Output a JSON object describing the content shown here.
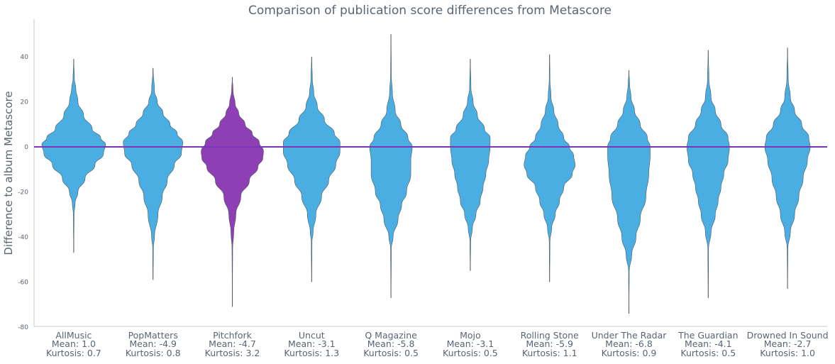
{
  "chart_data": {
    "type": "violin",
    "title": "Comparison of publication score differences from Metascore",
    "xlabel": "",
    "ylabel": "Difference to album Metascore",
    "ylim": [
      -80,
      55
    ],
    "yticks": [
      40,
      20,
      0,
      -20,
      -40,
      -60,
      -80
    ],
    "reference_line": 0,
    "grid": false,
    "colors": {
      "default": "#4aaee3",
      "highlight": "#8e3fb4",
      "reference": "#7b35b8",
      "axis": "#c8c8c8"
    },
    "categories": [
      {
        "name": "AllMusic",
        "mean": "Mean: 1.0",
        "kurtosis": "Kurtosis: 0.7",
        "highlight": false,
        "min": -47,
        "max": 39,
        "profile": [
          [
            -47,
            0
          ],
          [
            -30,
            0.5
          ],
          [
            -25,
            2
          ],
          [
            -20,
            6
          ],
          [
            -14,
            16
          ],
          [
            -8,
            30
          ],
          [
            -3,
            42
          ],
          [
            1,
            45
          ],
          [
            4,
            38
          ],
          [
            8,
            26
          ],
          [
            14,
            14
          ],
          [
            20,
            6
          ],
          [
            26,
            3
          ],
          [
            30,
            1
          ],
          [
            39,
            0
          ]
        ]
      },
      {
        "name": "PopMatters",
        "mean": "Mean: -4.9",
        "kurtosis": "Kurtosis: 0.8",
        "highlight": false,
        "min": -59,
        "max": 35,
        "profile": [
          [
            -59,
            0
          ],
          [
            -45,
            0.5
          ],
          [
            -40,
            2
          ],
          [
            -30,
            7
          ],
          [
            -22,
            13
          ],
          [
            -15,
            20
          ],
          [
            -8,
            30
          ],
          [
            -3,
            40
          ],
          [
            2,
            42
          ],
          [
            6,
            34
          ],
          [
            10,
            24
          ],
          [
            15,
            14
          ],
          [
            20,
            6
          ],
          [
            25,
            2
          ],
          [
            35,
            0
          ]
        ]
      },
      {
        "name": "Pitchfork",
        "mean": "Mean: -4.7",
        "kurtosis": "Kurtosis: 3.2",
        "highlight": true,
        "min": -71,
        "max": 31,
        "profile": [
          [
            -71,
            0
          ],
          [
            -45,
            0.5
          ],
          [
            -38,
            2
          ],
          [
            -30,
            5
          ],
          [
            -22,
            12
          ],
          [
            -15,
            24
          ],
          [
            -9,
            36
          ],
          [
            -5,
            43
          ],
          [
            -2,
            44
          ],
          [
            2,
            38
          ],
          [
            6,
            28
          ],
          [
            10,
            18
          ],
          [
            15,
            9
          ],
          [
            19,
            4
          ],
          [
            25,
            1
          ],
          [
            31,
            0
          ]
        ]
      },
      {
        "name": "Uncut",
        "mean": "Mean: -3.1",
        "kurtosis": "Kurtosis: 1.3",
        "highlight": false,
        "min": -60,
        "max": 40,
        "profile": [
          [
            -60,
            0
          ],
          [
            -42,
            0.5
          ],
          [
            -38,
            2
          ],
          [
            -30,
            6
          ],
          [
            -22,
            14
          ],
          [
            -15,
            24
          ],
          [
            -8,
            34
          ],
          [
            -2,
            40
          ],
          [
            2,
            40
          ],
          [
            6,
            32
          ],
          [
            12,
            18
          ],
          [
            18,
            8
          ],
          [
            24,
            3
          ],
          [
            30,
            1
          ],
          [
            40,
            0
          ]
        ]
      },
      {
        "name": "Q Magazine",
        "mean": "Mean: -5.8",
        "kurtosis": "Kurtosis: 0.5",
        "highlight": false,
        "min": -67,
        "max": 50,
        "profile": [
          [
            -67,
            0
          ],
          [
            -45,
            0.5
          ],
          [
            -40,
            3
          ],
          [
            -32,
            10
          ],
          [
            -26,
            15
          ],
          [
            -20,
            22
          ],
          [
            -12,
            28
          ],
          [
            -6,
            28
          ],
          [
            0,
            30
          ],
          [
            4,
            24
          ],
          [
            10,
            14
          ],
          [
            16,
            6
          ],
          [
            24,
            2
          ],
          [
            32,
            0.5
          ],
          [
            50,
            0
          ]
        ]
      },
      {
        "name": "Mojo",
        "mean": "Mean: -3.1",
        "kurtosis": "Kurtosis: 0.5",
        "highlight": false,
        "min": -55,
        "max": 39,
        "profile": [
          [
            -55,
            0
          ],
          [
            -42,
            0.5
          ],
          [
            -36,
            3
          ],
          [
            -30,
            8
          ],
          [
            -24,
            14
          ],
          [
            -18,
            18
          ],
          [
            -12,
            22
          ],
          [
            -6,
            26
          ],
          [
            0,
            28
          ],
          [
            4,
            28
          ],
          [
            8,
            20
          ],
          [
            14,
            10
          ],
          [
            20,
            4
          ],
          [
            26,
            1
          ],
          [
            39,
            0
          ]
        ]
      },
      {
        "name": "Rolling Stone",
        "mean": "Mean: -5.9",
        "kurtosis": "Kurtosis: 1.1",
        "highlight": false,
        "min": -60,
        "max": 41,
        "profile": [
          [
            -60,
            0
          ],
          [
            -42,
            0.5
          ],
          [
            -36,
            3
          ],
          [
            -30,
            8
          ],
          [
            -24,
            14
          ],
          [
            -18,
            20
          ],
          [
            -12,
            32
          ],
          [
            -8,
            36
          ],
          [
            -4,
            34
          ],
          [
            0,
            28
          ],
          [
            4,
            20
          ],
          [
            10,
            12
          ],
          [
            16,
            6
          ],
          [
            22,
            2
          ],
          [
            30,
            0.5
          ],
          [
            41,
            0
          ]
        ]
      },
      {
        "name": "Under The Radar",
        "mean": "Mean: -6.8",
        "kurtosis": "Kurtosis: 0.9",
        "highlight": false,
        "min": -74,
        "max": 34,
        "profile": [
          [
            -74,
            0
          ],
          [
            -55,
            0.5
          ],
          [
            -48,
            4
          ],
          [
            -40,
            10
          ],
          [
            -32,
            16
          ],
          [
            -22,
            24
          ],
          [
            -12,
            28
          ],
          [
            -4,
            30
          ],
          [
            0,
            30
          ],
          [
            4,
            26
          ],
          [
            10,
            16
          ],
          [
            16,
            8
          ],
          [
            22,
            3
          ],
          [
            28,
            1
          ],
          [
            34,
            0
          ]
        ]
      },
      {
        "name": "The Guardian",
        "mean": "Mean: -4.1",
        "kurtosis": "Kurtosis: 0.5",
        "highlight": false,
        "min": -67,
        "max": 43,
        "profile": [
          [
            -67,
            0
          ],
          [
            -45,
            0.5
          ],
          [
            -38,
            4
          ],
          [
            -30,
            10
          ],
          [
            -24,
            14
          ],
          [
            -18,
            18
          ],
          [
            -12,
            22
          ],
          [
            -6,
            28
          ],
          [
            0,
            30
          ],
          [
            4,
            28
          ],
          [
            10,
            18
          ],
          [
            16,
            10
          ],
          [
            22,
            4
          ],
          [
            30,
            1
          ],
          [
            43,
            0
          ]
        ]
      },
      {
        "name": "Drowned In Sound",
        "mean": "Mean: -2.7",
        "kurtosis": "Kurtosis: 1.0",
        "highlight": false,
        "min": -63,
        "max": 44,
        "profile": [
          [
            -63,
            0
          ],
          [
            -45,
            0.5
          ],
          [
            -38,
            4
          ],
          [
            -30,
            10
          ],
          [
            -22,
            16
          ],
          [
            -14,
            22
          ],
          [
            -6,
            28
          ],
          [
            0,
            32
          ],
          [
            4,
            30
          ],
          [
            10,
            20
          ],
          [
            16,
            10
          ],
          [
            22,
            4
          ],
          [
            30,
            1
          ],
          [
            44,
            0
          ]
        ]
      }
    ]
  }
}
